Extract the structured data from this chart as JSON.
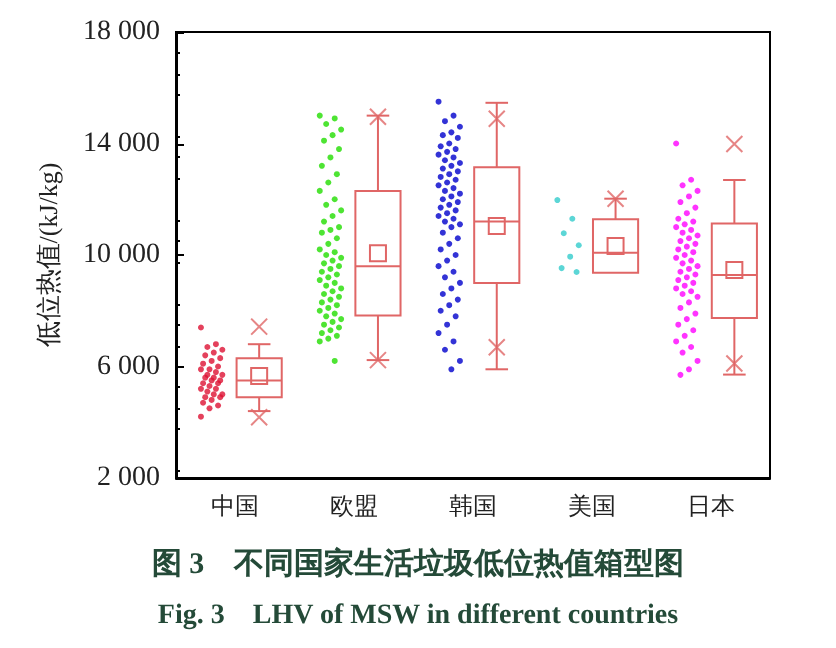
{
  "chart_data": {
    "type": "box",
    "title": "图 3　不同国家生活垃圾低位热值箱型图",
    "subtitle": "Fig. 3　LHV of MSW in different countries",
    "ylabel": "低位热值/(kJ/kg)",
    "categories": [
      "中国",
      "欧盟",
      "韩国",
      "美国",
      "日本"
    ],
    "ylim": [
      2000,
      18000
    ],
    "yticks": [
      {
        "value": 2000,
        "label": "2 000"
      },
      {
        "value": 6000,
        "label": "6 000"
      },
      {
        "value": 10000,
        "label": "10 000"
      },
      {
        "value": 14000,
        "label": "14 000"
      },
      {
        "value": 18000,
        "label": "18 000"
      }
    ],
    "marker": "circle",
    "series": [
      {
        "color": "#e06666",
        "boxes": [
          {
            "low": 4400,
            "q1": 4900,
            "median": 5500,
            "q3": 6300,
            "high": 6800,
            "mean": 5660,
            "outliers": [
              7430,
              4180
            ]
          },
          {
            "low": 6230,
            "q1": 7830,
            "median": 9600,
            "q3": 12300,
            "high": 15000,
            "mean": 10060,
            "outliers": [
              14960,
              6230
            ]
          },
          {
            "low": 5900,
            "q1": 9000,
            "median": 11200,
            "q3": 13150,
            "high": 15460,
            "mean": 11040,
            "outliers": [
              14890,
              6690
            ]
          },
          {
            "low": 9360,
            "q1": 9360,
            "median": 10080,
            "q3": 11280,
            "high": 12020,
            "mean": 10320,
            "outliers": [
              12020
            ]
          },
          {
            "low": 5710,
            "q1": 7740,
            "median": 9280,
            "q3": 11130,
            "high": 12690,
            "mean": 9460,
            "outliers": [
              13980,
              6110
            ]
          }
        ]
      },
      {
        "type": "scatter",
        "color": "#dd1133",
        "x": [
          "中国",
          "中国",
          "中国",
          "中国",
          "中国",
          "中国",
          "中国",
          "中国",
          "中国",
          "中国",
          "中国",
          "中国",
          "中国",
          "中国",
          "中国",
          "中国",
          "中国",
          "中国",
          "中国",
          "中国",
          "中国",
          "中国",
          "中国",
          "中国",
          "中国",
          "中国",
          "中国",
          "中国",
          "中国",
          "中国",
          "中国",
          "中国",
          "中国",
          "中国"
        ],
        "values": [
          7400,
          6800,
          6700,
          6600,
          6500,
          6400,
          6300,
          6200,
          6100,
          6000,
          5900,
          5900,
          5800,
          5700,
          5700,
          5600,
          5600,
          5500,
          5500,
          5400,
          5400,
          5300,
          5200,
          5200,
          5100,
          5000,
          5000,
          4900,
          4900,
          4800,
          4700,
          4600,
          4500,
          4200
        ]
      },
      {
        "type": "scatter",
        "color": "#22dd00",
        "x": [
          "欧盟",
          "欧盟",
          "欧盟",
          "欧盟",
          "欧盟",
          "欧盟",
          "欧盟",
          "欧盟",
          "欧盟",
          "欧盟",
          "欧盟",
          "欧盟",
          "欧盟",
          "欧盟",
          "欧盟",
          "欧盟",
          "欧盟",
          "欧盟",
          "欧盟",
          "欧盟",
          "欧盟",
          "欧盟",
          "欧盟",
          "欧盟",
          "欧盟",
          "欧盟",
          "欧盟",
          "欧盟",
          "欧盟",
          "欧盟",
          "欧盟",
          "欧盟",
          "欧盟",
          "欧盟",
          "欧盟",
          "欧盟",
          "欧盟",
          "欧盟",
          "欧盟",
          "欧盟",
          "欧盟",
          "欧盟",
          "欧盟",
          "欧盟",
          "欧盟",
          "欧盟",
          "欧盟",
          "欧盟",
          "欧盟",
          "欧盟",
          "欧盟",
          "欧盟",
          "欧盟",
          "欧盟",
          "欧盟",
          "欧盟",
          "欧盟"
        ],
        "values": [
          15000,
          14900,
          14700,
          14500,
          14300,
          14100,
          13800,
          13500,
          13200,
          12900,
          12600,
          12300,
          12000,
          11800,
          11600,
          11400,
          11200,
          11000,
          10900,
          10800,
          10600,
          10400,
          10200,
          10100,
          10000,
          9900,
          9800,
          9700,
          9600,
          9500,
          9400,
          9300,
          9200,
          9100,
          9000,
          8900,
          8800,
          8700,
          8600,
          8500,
          8400,
          8300,
          8200,
          8100,
          8000,
          7900,
          7800,
          7700,
          7600,
          7500,
          7400,
          7300,
          7200,
          7100,
          7000,
          6900,
          6200
        ]
      },
      {
        "type": "scatter",
        "color": "#0000cc",
        "x": [
          "韩国",
          "韩国",
          "韩国",
          "韩国",
          "韩国",
          "韩国",
          "韩国",
          "韩国",
          "韩国",
          "韩国",
          "韩国",
          "韩国",
          "韩国",
          "韩国",
          "韩国",
          "韩国",
          "韩国",
          "韩国",
          "韩国",
          "韩国",
          "韩国",
          "韩国",
          "韩国",
          "韩国",
          "韩国",
          "韩国",
          "韩国",
          "韩国",
          "韩国",
          "韩国",
          "韩国",
          "韩国",
          "韩国",
          "韩国",
          "韩国",
          "韩国",
          "韩国",
          "韩国",
          "韩国",
          "韩国",
          "韩国",
          "韩国",
          "韩国",
          "韩国",
          "韩国",
          "韩国",
          "韩国",
          "韩国",
          "韩国",
          "韩国",
          "韩国",
          "韩国",
          "韩国",
          "韩国",
          "韩国",
          "韩国",
          "韩国",
          "韩国",
          "韩国",
          "韩国"
        ],
        "values": [
          15500,
          15000,
          14800,
          14600,
          14400,
          14300,
          14200,
          14000,
          13900,
          13800,
          13700,
          13600,
          13500,
          13400,
          13300,
          13200,
          13100,
          13000,
          12900,
          12800,
          12700,
          12600,
          12500,
          12400,
          12300,
          12200,
          12100,
          12000,
          11900,
          11800,
          11700,
          11600,
          11500,
          11400,
          11300,
          11200,
          11100,
          11000,
          10800,
          10600,
          10400,
          10200,
          10000,
          9800,
          9600,
          9400,
          9200,
          9000,
          8800,
          8600,
          8400,
          8200,
          8000,
          7800,
          7500,
          7200,
          6900,
          6600,
          6200,
          5900
        ]
      },
      {
        "type": "scatter",
        "color": "#33cccc",
        "x": [
          "美国",
          "美国",
          "美国",
          "美国",
          "美国",
          "美国",
          "美国"
        ],
        "values": [
          11970,
          11300,
          10780,
          10350,
          9940,
          9530,
          9390
        ]
      },
      {
        "type": "scatter",
        "color": "#ff00ff",
        "x": [
          "日本",
          "日本",
          "日本",
          "日本",
          "日本",
          "日本",
          "日本",
          "日本",
          "日本",
          "日本",
          "日本",
          "日本",
          "日本",
          "日本",
          "日本",
          "日本",
          "日本",
          "日本",
          "日本",
          "日本",
          "日本",
          "日本",
          "日本",
          "日本",
          "日本",
          "日本",
          "日本",
          "日本",
          "日本",
          "日本",
          "日本",
          "日本",
          "日本",
          "日本",
          "日本",
          "日本",
          "日本",
          "日本",
          "日本",
          "日本",
          "日本",
          "日本",
          "日本",
          "日本",
          "日本",
          "日本",
          "日本",
          "日本",
          "日本",
          "日本"
        ],
        "values": [
          14000,
          12700,
          12500,
          12300,
          12100,
          11900,
          11700,
          11500,
          11300,
          11200,
          11100,
          11000,
          10900,
          10800,
          10700,
          10600,
          10500,
          10400,
          10300,
          10200,
          10100,
          10000,
          9900,
          9800,
          9700,
          9600,
          9500,
          9400,
          9300,
          9200,
          9100,
          9000,
          8900,
          8800,
          8700,
          8600,
          8500,
          8300,
          8100,
          7900,
          7700,
          7500,
          7300,
          7100,
          6900,
          6700,
          6500,
          6200,
          5900,
          5700
        ]
      }
    ]
  }
}
